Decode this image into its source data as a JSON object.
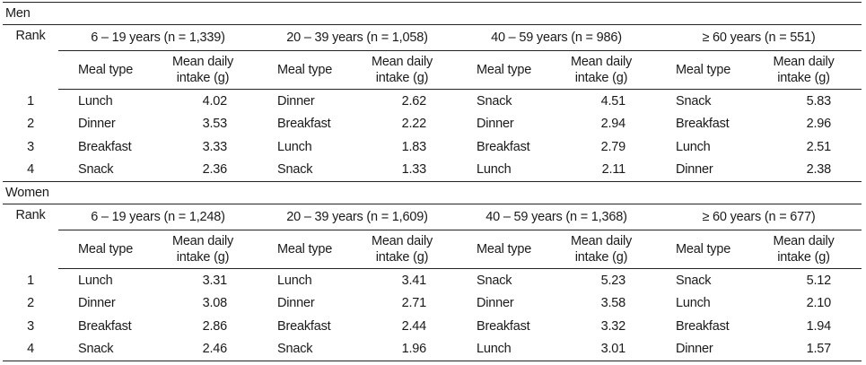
{
  "rank_label": "Rank",
  "meal_type_label": "Meal type",
  "intake_label_line1": "Mean daily",
  "intake_label_line2": "intake (g)",
  "sections": [
    {
      "title": "Men",
      "groups": [
        "6 – 19 years (n = 1,339)",
        "20 – 39 years (n = 1,058)",
        "40 – 59 years (n = 986)",
        "≥ 60 years (n = 551)"
      ],
      "rows": [
        {
          "rank": "1",
          "cells": [
            [
              "Lunch",
              "4.02"
            ],
            [
              "Dinner",
              "2.62"
            ],
            [
              "Snack",
              "4.51"
            ],
            [
              "Snack",
              "5.83"
            ]
          ]
        },
        {
          "rank": "2",
          "cells": [
            [
              "Dinner",
              "3.53"
            ],
            [
              "Breakfast",
              "2.22"
            ],
            [
              "Dinner",
              "2.94"
            ],
            [
              "Breakfast",
              "2.96"
            ]
          ]
        },
        {
          "rank": "3",
          "cells": [
            [
              "Breakfast",
              "3.33"
            ],
            [
              "Lunch",
              "1.83"
            ],
            [
              "Breakfast",
              "2.79"
            ],
            [
              "Lunch",
              "2.51"
            ]
          ]
        },
        {
          "rank": "4",
          "cells": [
            [
              "Snack",
              "2.36"
            ],
            [
              "Snack",
              "1.33"
            ],
            [
              "Lunch",
              "2.11"
            ],
            [
              "Dinner",
              "2.38"
            ]
          ]
        }
      ]
    },
    {
      "title": "Women",
      "groups": [
        "6 – 19 years (n = 1,248)",
        "20 – 39 years (n = 1,609)",
        "40 – 59 years (n = 1,368)",
        "≥ 60 years (n = 677)"
      ],
      "rows": [
        {
          "rank": "1",
          "cells": [
            [
              "Lunch",
              "3.31"
            ],
            [
              "Lunch",
              "3.41"
            ],
            [
              "Snack",
              "5.23"
            ],
            [
              "Snack",
              "5.12"
            ]
          ]
        },
        {
          "rank": "2",
          "cells": [
            [
              "Dinner",
              "3.08"
            ],
            [
              "Dinner",
              "2.71"
            ],
            [
              "Dinner",
              "3.58"
            ],
            [
              "Lunch",
              "2.10"
            ]
          ]
        },
        {
          "rank": "3",
          "cells": [
            [
              "Breakfast",
              "2.86"
            ],
            [
              "Breakfast",
              "2.44"
            ],
            [
              "Breakfast",
              "3.32"
            ],
            [
              "Breakfast",
              "1.94"
            ]
          ]
        },
        {
          "rank": "4",
          "cells": [
            [
              "Snack",
              "2.46"
            ],
            [
              "Snack",
              "1.96"
            ],
            [
              "Lunch",
              "3.01"
            ],
            [
              "Dinner",
              "1.57"
            ]
          ]
        }
      ]
    }
  ]
}
